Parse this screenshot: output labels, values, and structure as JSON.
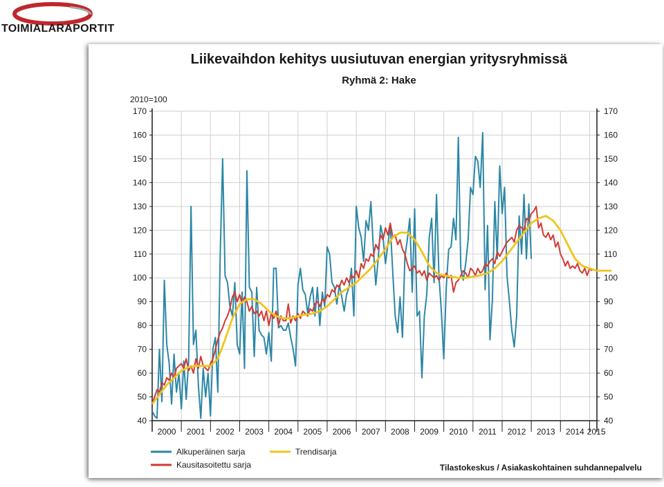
{
  "brand": {
    "name": "TOIMIALARAPORTIT",
    "accent": "#c0272d"
  },
  "chart_data": {
    "type": "line",
    "title": "Liikevaihdon kehitys uusiutuvan energian yritysryhmissä",
    "subtitle": "Ryhmä 2: Hake",
    "unit_label": "2010=100",
    "source": "Tilastokeskus / Asiakaskohtainen suhdannepalvelu",
    "ylim": [
      40,
      170
    ],
    "yticks": [
      40,
      50,
      60,
      70,
      80,
      90,
      100,
      110,
      120,
      130,
      140,
      150,
      160,
      170
    ],
    "xlim": [
      2000,
      2015.25
    ],
    "year_labels": [
      "2000",
      "2001",
      "2002",
      "2003",
      "2004",
      "2005",
      "2006",
      "2007",
      "2008",
      "2009",
      "2010",
      "2011",
      "2012",
      "2013",
      "2014",
      "2015"
    ],
    "grid": true,
    "legend_position": "bottom-left",
    "series": [
      {
        "name": "Alkuperäinen sarja",
        "color": "#2b86a6",
        "x_start": 2000.0,
        "x_step": 0.083333,
        "values": [
          44,
          42,
          41,
          70,
          48,
          99,
          72,
          64,
          47,
          68,
          52,
          60,
          45,
          65,
          49,
          65,
          130,
          72,
          78,
          55,
          41,
          62,
          50,
          60,
          42,
          70,
          75,
          52,
          110,
          150,
          101,
          98,
          88,
          84,
          98,
          72,
          68,
          94,
          62,
          145,
          96,
          94,
          67,
          96,
          78,
          76,
          75,
          68,
          77,
          65,
          104,
          104,
          79,
          80,
          78,
          78,
          81,
          75,
          70,
          63,
          97,
          104,
          95,
          93,
          85,
          92,
          96,
          84,
          96,
          80,
          94,
          88,
          113,
          110,
          98,
          96,
          89,
          97,
          92,
          86,
          93,
          96,
          104,
          84,
          130,
          121,
          117,
          107,
          124,
          120,
          132,
          113,
          97,
          108,
          122,
          117,
          106,
          114,
          122,
          102,
          84,
          77,
          92,
          75,
          109,
          116,
          125,
          94,
          129,
          84,
          86,
          58,
          84,
          93,
          117,
          125,
          98,
          135,
          101,
          86,
          66,
          96,
          112,
          113,
          125,
          116,
          159,
          104,
          99,
          106,
          116,
          138,
          135,
          151,
          149,
          138,
          161,
          95,
          122,
          74,
          91,
          132,
          108,
          147,
          127,
          138,
          101,
          90,
          78,
          71,
          84,
          126,
          110,
          135,
          108,
          131,
          108
        ]
      },
      {
        "name": "Kausitasoitettu sarja",
        "color": "#d23a32",
        "x_start": 2000.0,
        "x_step": 0.083333,
        "values": [
          47,
          50,
          53,
          52,
          56,
          55,
          58,
          57,
          60,
          58,
          62,
          63,
          64,
          62,
          66,
          61,
          63,
          60,
          66,
          62,
          67,
          63,
          62,
          61,
          64,
          66,
          70,
          74,
          77,
          79,
          82,
          84,
          87,
          92,
          94,
          90,
          93,
          89,
          92,
          90,
          86,
          88,
          85,
          86,
          84,
          86,
          82,
          86,
          80,
          85,
          83,
          86,
          80,
          84,
          82,
          82,
          89,
          81,
          84,
          82,
          85,
          83,
          86,
          85,
          84,
          87,
          86,
          89,
          90,
          88,
          91,
          90,
          93,
          92,
          95,
          94,
          97,
          96,
          99,
          97,
          100,
          98,
          101,
          100,
          103,
          100,
          106,
          104,
          108,
          107,
          110,
          109,
          114,
          112,
          118,
          116,
          121,
          118,
          123,
          117,
          118,
          114,
          116,
          112,
          110,
          106,
          103,
          104,
          105,
          102,
          103,
          101,
          103,
          99,
          102,
          101,
          100,
          101,
          99,
          101,
          100,
          102,
          100,
          101,
          94,
          98,
          99,
          101,
          103,
          102,
          100,
          104,
          103,
          101,
          104,
          102,
          103,
          106,
          105,
          107,
          108,
          106,
          111,
          109,
          111,
          113,
          115,
          116,
          117,
          115,
          120,
          122,
          121,
          120,
          125,
          124,
          127,
          128,
          130,
          121,
          123,
          118,
          117,
          119,
          116,
          118,
          113,
          115,
          110,
          108,
          105,
          107,
          104,
          105,
          104,
          106,
          103,
          102,
          104,
          101,
          104,
          103
        ]
      },
      {
        "name": "Trendisarja",
        "color": "#f0c419",
        "points": [
          [
            2000,
            47
          ],
          [
            2000.25,
            51
          ],
          [
            2000.5,
            55
          ],
          [
            2000.75,
            58
          ],
          [
            2001,
            61
          ],
          [
            2001.25,
            62.5
          ],
          [
            2001.5,
            63
          ],
          [
            2001.75,
            63
          ],
          [
            2002,
            63
          ],
          [
            2002.25,
            66
          ],
          [
            2002.5,
            74
          ],
          [
            2002.75,
            83
          ],
          [
            2003,
            89
          ],
          [
            2003.25,
            91
          ],
          [
            2003.5,
            91
          ],
          [
            2003.75,
            89
          ],
          [
            2004,
            86
          ],
          [
            2004.25,
            84
          ],
          [
            2004.5,
            83
          ],
          [
            2004.75,
            83
          ],
          [
            2005,
            84
          ],
          [
            2005.25,
            84.5
          ],
          [
            2005.5,
            85
          ],
          [
            2005.75,
            86
          ],
          [
            2006,
            88
          ],
          [
            2006.25,
            91
          ],
          [
            2006.5,
            94
          ],
          [
            2006.75,
            96
          ],
          [
            2007,
            98
          ],
          [
            2007.25,
            101
          ],
          [
            2007.5,
            104
          ],
          [
            2007.75,
            108
          ],
          [
            2008,
            112
          ],
          [
            2008.25,
            117
          ],
          [
            2008.5,
            119
          ],
          [
            2008.75,
            119
          ],
          [
            2009,
            116
          ],
          [
            2009.25,
            111
          ],
          [
            2009.5,
            105
          ],
          [
            2009.75,
            102
          ],
          [
            2010,
            101
          ],
          [
            2010.25,
            100.5
          ],
          [
            2010.5,
            100
          ],
          [
            2010.75,
            100
          ],
          [
            2011,
            100.5
          ],
          [
            2011.25,
            101
          ],
          [
            2011.5,
            102
          ],
          [
            2011.75,
            104
          ],
          [
            2012,
            107
          ],
          [
            2012.25,
            111
          ],
          [
            2012.5,
            115
          ],
          [
            2012.75,
            119
          ],
          [
            2013,
            123
          ],
          [
            2013.25,
            125
          ],
          [
            2013.5,
            126
          ],
          [
            2013.75,
            124
          ],
          [
            2014,
            120
          ],
          [
            2014.25,
            114
          ],
          [
            2014.5,
            108
          ],
          [
            2014.75,
            105
          ],
          [
            2015,
            104
          ],
          [
            2015.25,
            103
          ],
          [
            2015.5,
            103
          ],
          [
            2015.75,
            103
          ]
        ]
      }
    ]
  }
}
